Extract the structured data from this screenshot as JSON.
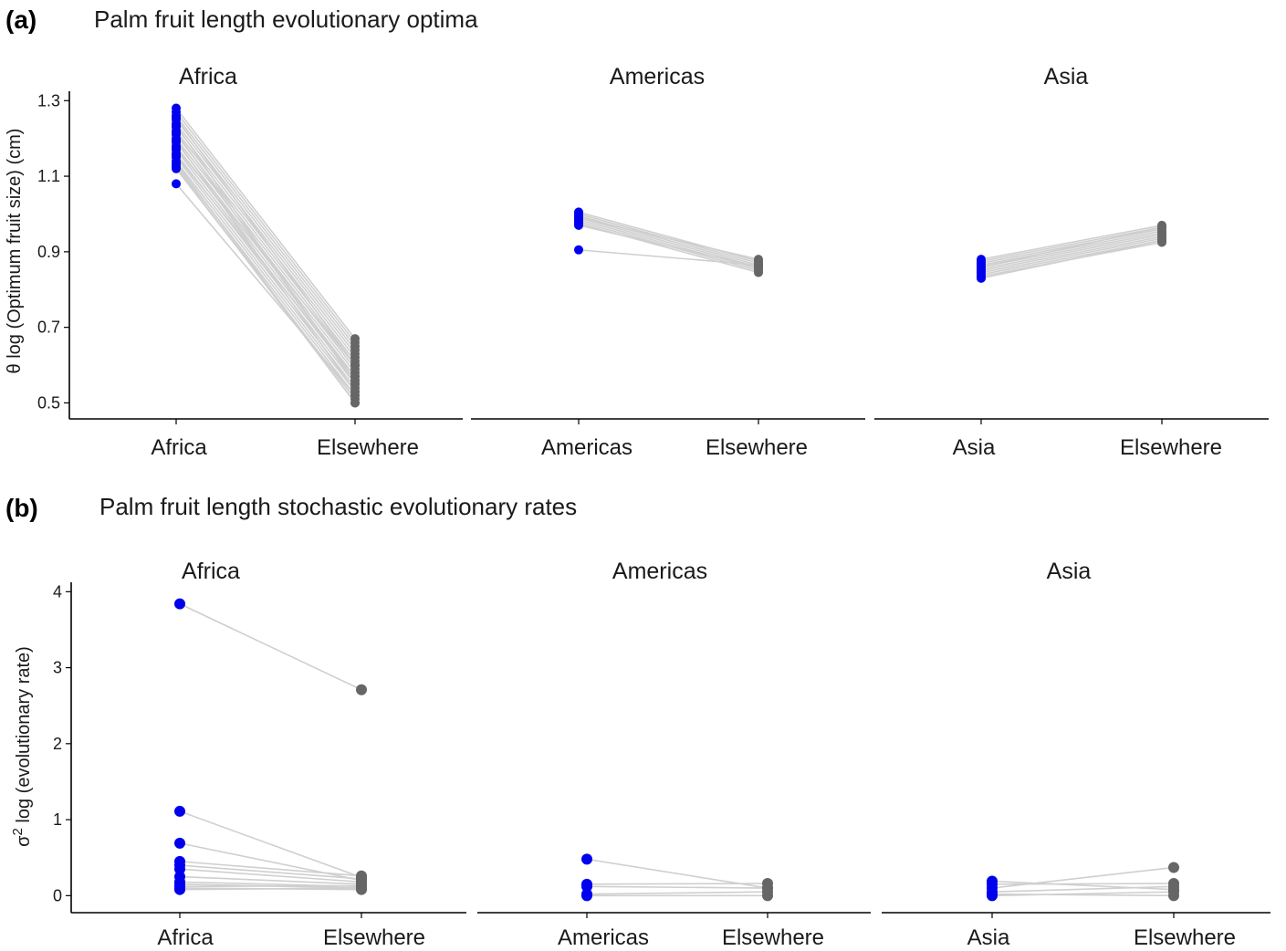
{
  "chart_data": [
    {
      "panel": "(a)",
      "title": "Palm fruit length evolutionary optima",
      "type": "line",
      "ylabel": "θ log (Optimum fruit size) (cm)",
      "yticks": [
        0.5,
        0.7,
        0.9,
        1.1,
        1.3
      ],
      "ylim": [
        0.46,
        1.32
      ],
      "colors": {
        "region": "#0000ee",
        "elsewhere": "#666666",
        "line": "#cfcfcf"
      },
      "facets": [
        {
          "title": "Africa",
          "categories": [
            "Africa",
            "Elsewhere"
          ],
          "pairs": [
            [
              1.28,
              0.67
            ],
            [
              1.27,
              0.66
            ],
            [
              1.26,
              0.65
            ],
            [
              1.25,
              0.64
            ],
            [
              1.24,
              0.63
            ],
            [
              1.23,
              0.62
            ],
            [
              1.22,
              0.61
            ],
            [
              1.21,
              0.6
            ],
            [
              1.2,
              0.59
            ],
            [
              1.19,
              0.58
            ],
            [
              1.18,
              0.57
            ],
            [
              1.17,
              0.56
            ],
            [
              1.16,
              0.55
            ],
            [
              1.15,
              0.54
            ],
            [
              1.14,
              0.53
            ],
            [
              1.13,
              0.52
            ],
            [
              1.12,
              0.51
            ],
            [
              1.255,
              0.6
            ],
            [
              1.235,
              0.55
            ],
            [
              1.215,
              0.56
            ],
            [
              1.195,
              0.53
            ],
            [
              1.175,
              0.6
            ],
            [
              1.155,
              0.57
            ],
            [
              1.135,
              0.5
            ],
            [
              1.125,
              0.5
            ],
            [
              1.08,
              0.52
            ]
          ]
        },
        {
          "title": "Americas",
          "categories": [
            "Americas",
            "Elsewhere"
          ],
          "pairs": [
            [
              1.005,
              0.875
            ],
            [
              1.0,
              0.87
            ],
            [
              0.995,
              0.865
            ],
            [
              0.99,
              0.86
            ],
            [
              0.985,
              0.855
            ],
            [
              0.98,
              0.85
            ],
            [
              0.975,
              0.845
            ],
            [
              0.97,
              0.86
            ],
            [
              0.99,
              0.88
            ],
            [
              0.905,
              0.865
            ]
          ]
        },
        {
          "title": "Asia",
          "categories": [
            "Asia",
            "Elsewhere"
          ],
          "pairs": [
            [
              0.88,
              0.97
            ],
            [
              0.875,
              0.965
            ],
            [
              0.87,
              0.96
            ],
            [
              0.865,
              0.955
            ],
            [
              0.86,
              0.95
            ],
            [
              0.855,
              0.945
            ],
            [
              0.85,
              0.94
            ],
            [
              0.845,
              0.935
            ],
            [
              0.84,
              0.93
            ],
            [
              0.835,
              0.925
            ],
            [
              0.83,
              0.93
            ],
            [
              0.86,
              0.965
            ]
          ]
        }
      ]
    },
    {
      "panel": "(b)",
      "title": "Palm fruit length stochastic evolutionary rates",
      "type": "line",
      "ylabel_symbol": "σ",
      "ylabel_exp": "2",
      "ylabel_rest": " log (evolutionary rate)",
      "yticks": [
        0,
        1,
        2,
        3,
        4
      ],
      "ylim": [
        -0.2,
        4.1
      ],
      "colors": {
        "region": "#0000ee",
        "elsewhere": "#666666",
        "line": "#cfcfcf"
      },
      "facets": [
        {
          "title": "Africa",
          "categories": [
            "Africa",
            "Elsewhere"
          ],
          "pairs": [
            [
              3.84,
              2.71
            ],
            [
              1.11,
              0.24
            ],
            [
              0.69,
              0.2
            ],
            [
              0.45,
              0.26
            ],
            [
              0.4,
              0.22
            ],
            [
              0.35,
              0.18
            ],
            [
              0.25,
              0.15
            ],
            [
              0.18,
              0.12
            ],
            [
              0.15,
              0.1
            ],
            [
              0.12,
              0.13
            ],
            [
              0.1,
              0.08
            ],
            [
              0.08,
              0.1
            ]
          ]
        },
        {
          "title": "Americas",
          "categories": [
            "Americas",
            "Elsewhere"
          ],
          "pairs": [
            [
              0.48,
              0.1
            ],
            [
              0.15,
              0.16
            ],
            [
              0.12,
              0.1
            ],
            [
              0.0,
              0.0
            ],
            [
              0.02,
              0.05
            ]
          ]
        },
        {
          "title": "Asia",
          "categories": [
            "Asia",
            "Elsewhere"
          ],
          "pairs": [
            [
              0.19,
              0.08
            ],
            [
              0.15,
              0.16
            ],
            [
              0.1,
              0.37
            ],
            [
              0.05,
              0.12
            ],
            [
              0.02,
              0.0
            ],
            [
              0.0,
              0.05
            ]
          ]
        }
      ]
    }
  ]
}
